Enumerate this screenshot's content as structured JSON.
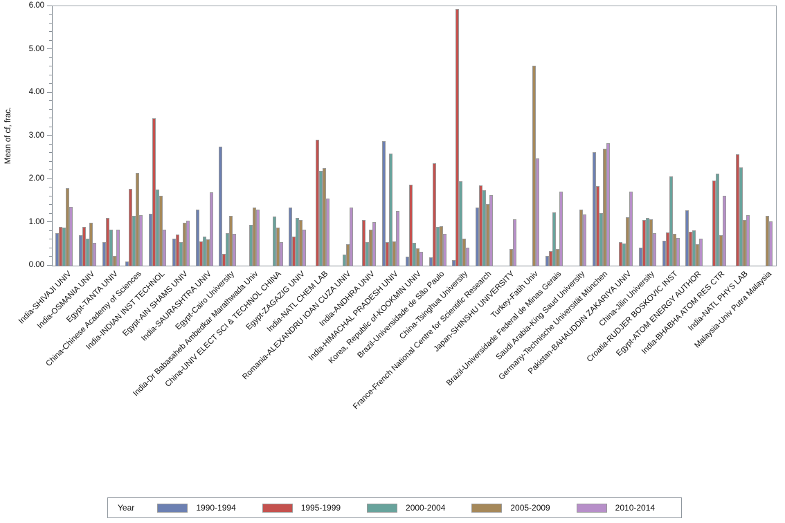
{
  "chart_data": {
    "type": "bar",
    "title": "",
    "xlabel": "",
    "ylabel": "Mean of cf, frac.",
    "ylim": [
      0,
      6
    ],
    "ytick_labels": [
      "0.00",
      "1.00",
      "2.00",
      "3.00",
      "4.00",
      "5.00",
      "6.00"
    ],
    "minor_tick_step": 0.2,
    "grid": "off",
    "legend_title": "Year",
    "legend_position": "bottom",
    "categories": [
      "India-SHIVAJI UNIV",
      "India-OSMANIA UNIV",
      "Egypt-TANTA UNIV",
      "China-Chinese Academy of Sciences",
      "India-INDIAN INST TECHNOL",
      "Egypt-AIN SHAMS UNIV",
      "India-SAURASHTRA UNIV",
      "Egypt-Cairo University",
      "India-Dr Babasaheb Ambedkar Marathwada Univ",
      "China-UNIV ELECT SCI & TECHNOL CHINA",
      "Egypt-ZAGAZIG UNIV",
      "India-NATL CHEM LAB",
      "Romania-ALEXANDRU IOAN CUZA UNIV",
      "India-ANDHRA UNIV",
      "India-HIMACHAL PRADESH UNIV",
      "Korea, Republic of-KOOKMIN UNIV",
      "Brazil-Universidade de São Paulo",
      "China-Tsinghua University",
      "France-French National Centre for Scientific Research",
      "Japan-SHINSHU UNIVERSITY",
      "Turkey-Fatih Univ",
      "Brazil-Universidade Federal de Minas Gerais",
      "Saudi Arabia-King Saud University",
      "Germany-Technische Universität München",
      "Pakistan-BAHAUDDIN ZAKARIYA UNIV",
      "China-Jilin University",
      "Croatia-RUDJER BOSKOVIC INST",
      "Egypt-ATOM ENERGY AUTHOR",
      "India-BHABHA ATOM RES CTR",
      "India-NATL PHYS LAB",
      "Malaysia-Univ Putra Malaysia"
    ],
    "series": [
      {
        "name": "1990-1994",
        "color": "#6c80b2",
        "values": [
          0.76,
          0.7,
          0.55,
          0.1,
          1.2,
          0.62,
          1.3,
          2.76,
          null,
          null,
          1.35,
          null,
          null,
          null,
          2.88,
          0.21,
          0.19,
          0.13,
          1.34,
          null,
          null,
          0.22,
          null,
          2.63,
          null,
          0.42,
          0.57,
          1.28,
          null,
          null,
          null
        ]
      },
      {
        "name": "1995-1999",
        "color": "#c4514e",
        "values": [
          0.9,
          0.89,
          1.1,
          1.77,
          3.41,
          0.72,
          0.56,
          0.28,
          null,
          null,
          0.68,
          2.92,
          null,
          1.05,
          0.55,
          1.87,
          2.37,
          5.93,
          1.85,
          null,
          null,
          0.33,
          null,
          1.84,
          0.54,
          1.05,
          0.77,
          0.78,
          1.97,
          2.57,
          null
        ]
      },
      {
        "name": "2000-2004",
        "color": "#68a39c",
        "values": [
          0.88,
          0.63,
          0.84,
          1.16,
          1.76,
          0.55,
          0.68,
          0.75,
          0.95,
          1.13,
          1.1,
          2.2,
          0.25,
          0.55,
          2.59,
          0.53,
          0.9,
          1.96,
          1.75,
          null,
          null,
          1.24,
          null,
          1.22,
          0.51,
          1.11,
          2.07,
          0.82,
          2.13,
          2.27,
          null
        ]
      },
      {
        "name": "2005-2009",
        "color": "#a5885a",
        "values": [
          1.79,
          1.0,
          0.22,
          2.15,
          1.62,
          1.0,
          0.61,
          1.15,
          1.34,
          0.88,
          1.05,
          2.25,
          0.49,
          0.83,
          0.56,
          0.4,
          0.91,
          0.62,
          1.43,
          0.38,
          4.62,
          0.39,
          1.29,
          2.71,
          1.12,
          1.08,
          0.74,
          0.49,
          0.7,
          1.06,
          1.15
        ]
      },
      {
        "name": "2010-2014",
        "color": "#b78fc9",
        "values": [
          1.36,
          0.53,
          0.84,
          1.17,
          0.83,
          1.04,
          1.7,
          0.73,
          1.29,
          0.54,
          0.83,
          1.56,
          1.34,
          1.01,
          1.27,
          0.32,
          0.73,
          0.42,
          1.64,
          1.08,
          2.48,
          1.72,
          1.18,
          2.84,
          1.72,
          0.76,
          0.64,
          0.62,
          1.62,
          1.17,
          1.03
        ]
      }
    ]
  }
}
